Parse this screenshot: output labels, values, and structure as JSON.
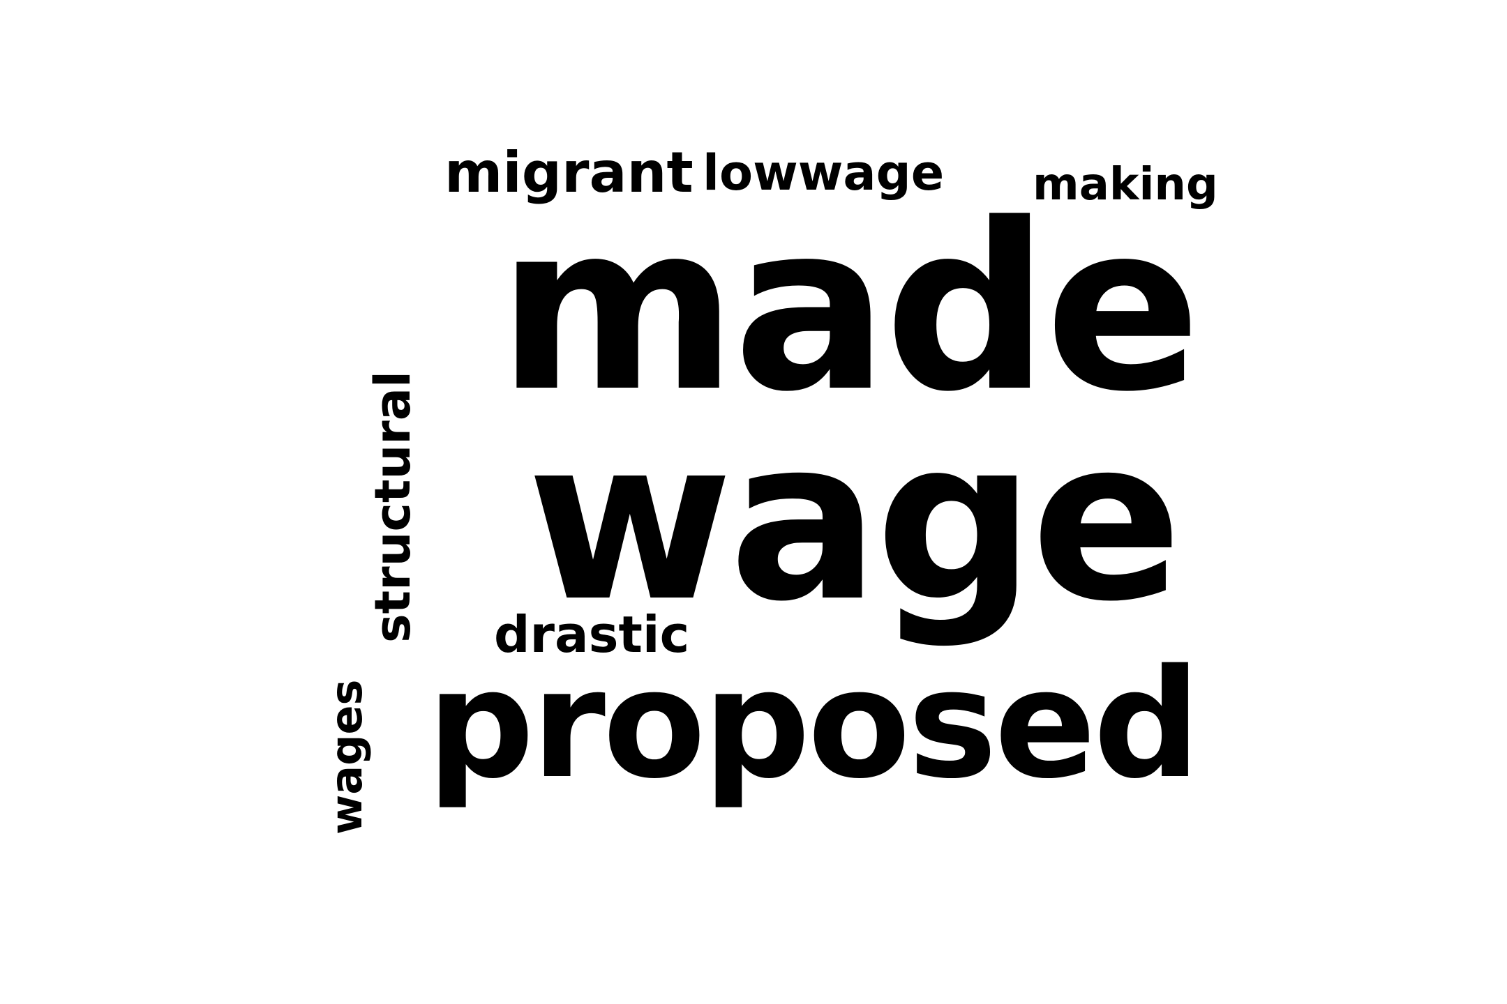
{
  "cloud": {
    "background": "#ffffff",
    "text_color": "#000000",
    "words": {
      "made": "made",
      "wage": "wage",
      "proposed": "proposed",
      "migrant": "migrant",
      "lowwage": "lowwage",
      "making": "making",
      "drastic": "drastic",
      "structural": "structural",
      "wages": "wages"
    },
    "orientation": {
      "structural": "vertical",
      "wages": "vertical"
    }
  }
}
